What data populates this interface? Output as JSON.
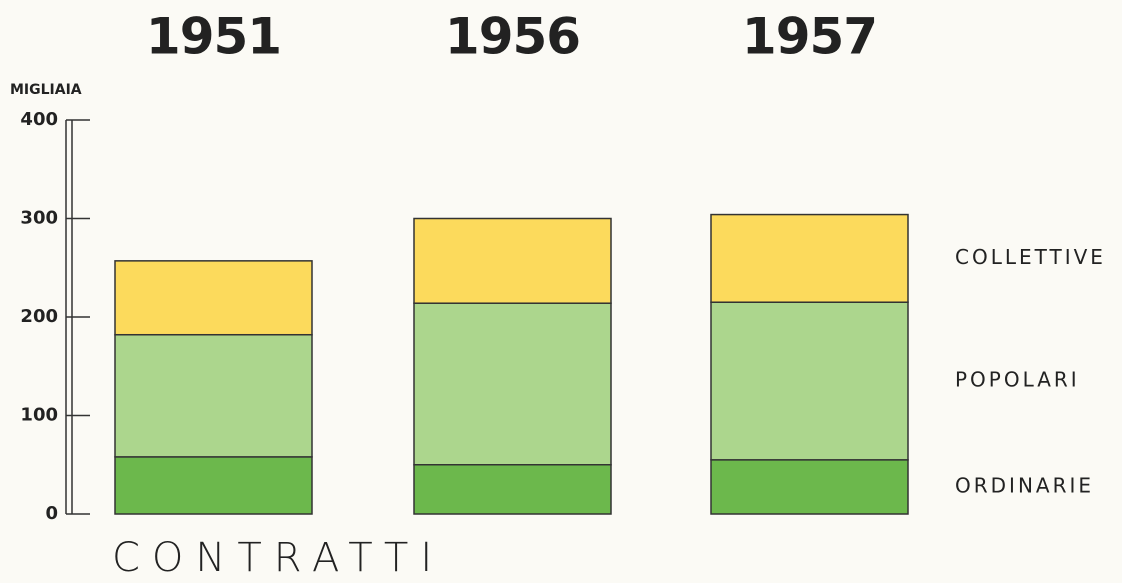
{
  "chart_data": {
    "type": "bar",
    "stacked": true,
    "ylabel": "MIGLIAIA",
    "xlabel": "CONTRATTI",
    "categories": [
      "1951",
      "1956",
      "1957"
    ],
    "series": [
      {
        "name": "ORDINARIE",
        "color": "#6cb84c",
        "values": [
          58,
          50,
          55
        ]
      },
      {
        "name": "POPOLARI",
        "color": "#acd68d",
        "values": [
          124,
          164,
          160
        ]
      },
      {
        "name": "COLLETTIVE",
        "color": "#fcda5c",
        "values": [
          75,
          86,
          89
        ]
      }
    ],
    "ylim": [
      0,
      400
    ],
    "yticks": [
      0,
      100,
      200,
      300,
      400
    ]
  }
}
